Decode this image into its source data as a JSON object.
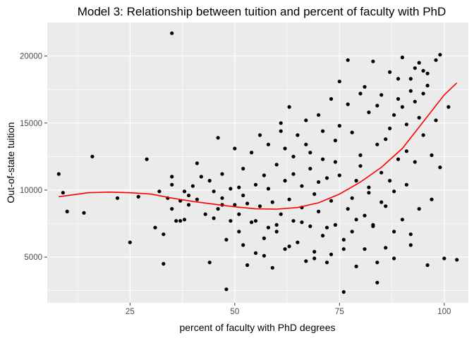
{
  "chart_data": {
    "type": "scatter",
    "title": "Model 3: Relationship between tuition and percent of faculty with PhD",
    "xlabel": "percent of faculty with PhD degrees",
    "ylabel": "Out-of-state tuition",
    "xlim": [
      5.25,
      105.75
    ],
    "ylim": [
      1590,
      22500
    ],
    "x_ticks": [
      25,
      50,
      75,
      100
    ],
    "y_ticks": [
      5000,
      10000,
      15000,
      20000
    ],
    "x_tick_labels": [
      "25",
      "50",
      "75",
      "100"
    ],
    "y_tick_labels": [
      "5000",
      "10000",
      "15000",
      "20000"
    ],
    "grid": true,
    "legend": "none",
    "colors": {
      "panel": "#ebebeb",
      "grid_major": "#ffffff",
      "grid_minor": "#f5f5f5",
      "points": "#000000",
      "fit_line": "#ff0000"
    },
    "fit_line": {
      "x": [
        8,
        15,
        20,
        25,
        30,
        35,
        40,
        45,
        50,
        55,
        60,
        65,
        70,
        75,
        80,
        85,
        90,
        95,
        100,
        103
      ],
      "y": [
        9500,
        9800,
        9850,
        9800,
        9700,
        9400,
        9150,
        8950,
        8750,
        8600,
        8580,
        8700,
        9050,
        9700,
        10600,
        11700,
        13100,
        15100,
        17100,
        18000
      ]
    },
    "series": [
      {
        "values": [
          [
            8,
            11200
          ],
          [
            9,
            9800
          ],
          [
            10,
            8400
          ],
          [
            14,
            8300
          ],
          [
            16,
            12500
          ],
          [
            22,
            9400
          ],
          [
            25,
            6100
          ],
          [
            27,
            9500
          ],
          [
            29,
            12300
          ],
          [
            31,
            7200
          ],
          [
            32,
            9900
          ],
          [
            33,
            4500
          ],
          [
            33,
            6700
          ],
          [
            34,
            9400
          ],
          [
            35,
            21700
          ],
          [
            35,
            8600
          ],
          [
            36,
            7700
          ],
          [
            37,
            7700
          ],
          [
            35,
            11000
          ],
          [
            35,
            10400
          ],
          [
            37,
            9200
          ],
          [
            38,
            7800
          ],
          [
            38,
            9900
          ],
          [
            39,
            9600
          ],
          [
            40,
            10300
          ],
          [
            41,
            12000
          ],
          [
            42,
            11000
          ],
          [
            43,
            8200
          ],
          [
            44,
            4600
          ],
          [
            45,
            7900
          ],
          [
            45,
            9900
          ],
          [
            46,
            13900
          ],
          [
            46,
            8600
          ],
          [
            47,
            11200
          ],
          [
            47,
            9400
          ],
          [
            48,
            6300
          ],
          [
            48,
            2600
          ],
          [
            49,
            7700
          ],
          [
            49,
            10100
          ],
          [
            50,
            8900
          ],
          [
            50,
            13100
          ],
          [
            51,
            10200
          ],
          [
            51,
            6900
          ],
          [
            52,
            11600
          ],
          [
            52,
            5900
          ],
          [
            53,
            9000
          ],
          [
            53,
            4400
          ],
          [
            54,
            12800
          ],
          [
            54,
            7600
          ],
          [
            55,
            10400
          ],
          [
            55,
            5300
          ],
          [
            56,
            14100
          ],
          [
            56,
            8800
          ],
          [
            57,
            6400
          ],
          [
            57,
            11100
          ],
          [
            58,
            7200
          ],
          [
            58,
            13400
          ],
          [
            59,
            9100
          ],
          [
            59,
            4200
          ],
          [
            60,
            11900
          ],
          [
            60,
            6900
          ],
          [
            61,
            15000
          ],
          [
            61,
            8200
          ],
          [
            62,
            10700
          ],
          [
            62,
            5600
          ],
          [
            63,
            16200
          ],
          [
            63,
            9300
          ],
          [
            64,
            7700
          ],
          [
            64,
            12500
          ],
          [
            65,
            14100
          ],
          [
            65,
            6100
          ],
          [
            66,
            10300
          ],
          [
            66,
            8700
          ],
          [
            67,
            4700
          ],
          [
            67,
            13400
          ],
          [
            68,
            11600
          ],
          [
            68,
            7300
          ],
          [
            69,
            9700
          ],
          [
            69,
            5400
          ],
          [
            70,
            15600
          ],
          [
            70,
            8400
          ],
          [
            71,
            12300
          ],
          [
            71,
            6600
          ],
          [
            72,
            10900
          ],
          [
            72,
            4600
          ],
          [
            73,
            16800
          ],
          [
            73,
            9200
          ],
          [
            74,
            7400
          ],
          [
            74,
            13700
          ],
          [
            75,
            18100
          ],
          [
            75,
            11100
          ],
          [
            76,
            5600
          ],
          [
            76,
            2400
          ],
          [
            77,
            19700
          ],
          [
            77,
            8600
          ],
          [
            78,
            14300
          ],
          [
            78,
            6900
          ],
          [
            79,
            10700
          ],
          [
            79,
            4300
          ],
          [
            80,
            17200
          ],
          [
            80,
            12600
          ],
          [
            81,
            8100
          ],
          [
            81,
            5600
          ],
          [
            82,
            15800
          ],
          [
            82,
            10200
          ],
          [
            83,
            7300
          ],
          [
            83,
            19600
          ],
          [
            84,
            13400
          ],
          [
            84,
            3100
          ],
          [
            85,
            17100
          ],
          [
            85,
            11300
          ],
          [
            86,
            8800
          ],
          [
            86,
            5700
          ],
          [
            87,
            18800
          ],
          [
            87,
            14600
          ],
          [
            88,
            9900
          ],
          [
            88,
            6900
          ],
          [
            89,
            16800
          ],
          [
            89,
            12300
          ],
          [
            90,
            19900
          ],
          [
            90,
            7800
          ],
          [
            91,
            14900
          ],
          [
            91,
            10400
          ],
          [
            92,
            18300
          ],
          [
            92,
            5900
          ],
          [
            93,
            16600
          ],
          [
            93,
            12100
          ],
          [
            94,
            19500
          ],
          [
            94,
            8600
          ],
          [
            95,
            17200
          ],
          [
            95,
            14100
          ],
          [
            96,
            18700
          ],
          [
            96,
            4400
          ],
          [
            97,
            12600
          ],
          [
            97,
            9300
          ],
          [
            98,
            19700
          ],
          [
            98,
            15200
          ],
          [
            99,
            20100
          ],
          [
            99,
            11700
          ],
          [
            100,
            4900
          ],
          [
            101,
            16200
          ],
          [
            103,
            4800
          ],
          [
            84,
            4600
          ],
          [
            88,
            4900
          ],
          [
            92,
            6700
          ],
          [
            76,
            6300
          ],
          [
            72,
            7200
          ],
          [
            66,
            7600
          ],
          [
            60,
            7400
          ],
          [
            55,
            7700
          ],
          [
            79,
            7800
          ],
          [
            83,
            7400
          ],
          [
            74,
            12100
          ],
          [
            68,
            12800
          ],
          [
            62,
            13100
          ],
          [
            86,
            13800
          ],
          [
            90,
            16200
          ],
          [
            80,
            11800
          ],
          [
            70,
            10600
          ],
          [
            64,
            11200
          ],
          [
            58,
            10100
          ],
          [
            52,
            9600
          ],
          [
            78,
            9400
          ],
          [
            82,
            9800
          ],
          [
            87,
            10700
          ],
          [
            91,
            12900
          ],
          [
            94,
            15400
          ],
          [
            96,
            17800
          ],
          [
            89,
            18300
          ],
          [
            93,
            19100
          ],
          [
            85,
            9100
          ],
          [
            73,
            5200
          ],
          [
            69,
            4900
          ],
          [
            63,
            5800
          ],
          [
            57,
            5100
          ],
          [
            51,
            8200
          ],
          [
            47,
            8900
          ],
          [
            44,
            10700
          ],
          [
            41,
            9300
          ],
          [
            39,
            8900
          ],
          [
            75,
            14800
          ],
          [
            71,
            14400
          ],
          [
            67,
            15200
          ],
          [
            61,
            14400
          ],
          [
            77,
            16400
          ],
          [
            81,
            17700
          ],
          [
            84,
            16300
          ],
          [
            88,
            15600
          ],
          [
            92,
            17400
          ],
          [
            95,
            18900
          ]
        ]
      }
    ]
  }
}
